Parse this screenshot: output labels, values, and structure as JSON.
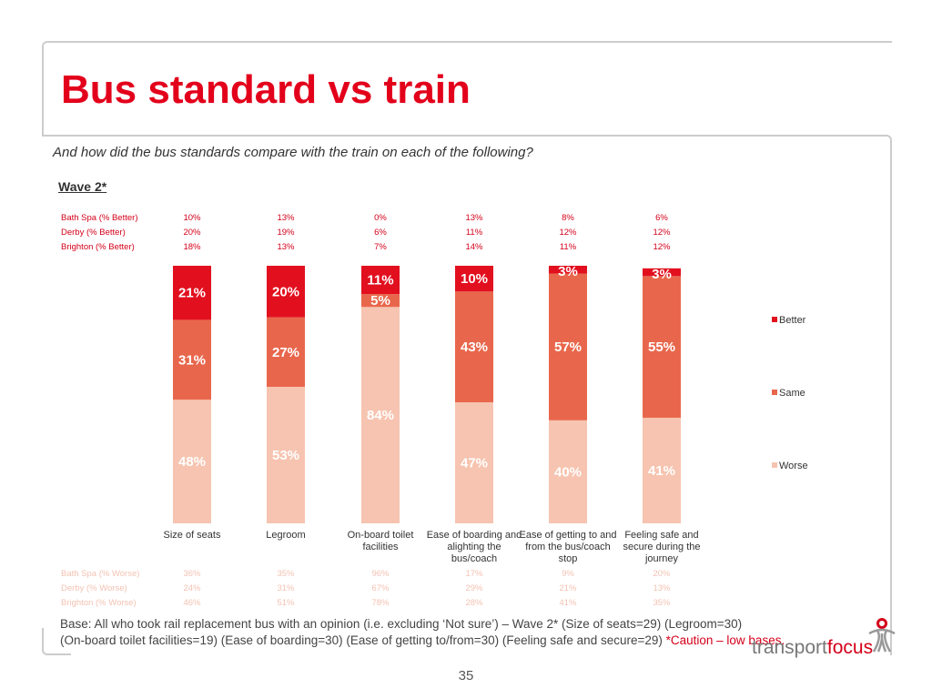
{
  "title": "Bus standard vs train",
  "question": "And how did the bus standards compare with the train on each of the following?",
  "wave": "Wave 2*",
  "better_table": [
    {
      "label": "Bath Spa (% Better)",
      "values": [
        "10%",
        "13%",
        "0%",
        "13%",
        "8%",
        "6%"
      ]
    },
    {
      "label": "Derby (% Better)",
      "values": [
        "20%",
        "19%",
        "6%",
        "11%",
        "12%",
        "12%"
      ]
    },
    {
      "label": "Brighton (% Better)",
      "values": [
        "18%",
        "13%",
        "7%",
        "14%",
        "11%",
        "12%"
      ]
    }
  ],
  "worse_table": [
    {
      "label": "Bath Spa (% Worse)",
      "values": [
        "36%",
        "35%",
        "96%",
        "17%",
        "9%",
        "20%"
      ]
    },
    {
      "label": "Derby (% Worse)",
      "values": [
        "24%",
        "31%",
        "67%",
        "29%",
        "21%",
        "13%"
      ]
    },
    {
      "label": "Brighton (% Worse)",
      "values": [
        "46%",
        "51%",
        "78%",
        "28%",
        "41%",
        "35%"
      ]
    }
  ],
  "chart_data": {
    "type": "bar",
    "stacked": true,
    "categories": [
      "Size of seats",
      "Legroom",
      "On-board toilet facilities",
      "Ease of boarding and alighting the bus/coach",
      "Ease of getting to and from the bus/coach stop",
      "Feeling safe and secure during the journey"
    ],
    "series": [
      {
        "name": "Worse",
        "values": [
          48,
          53,
          84,
          47,
          40,
          41
        ],
        "color": "#f6c4b0"
      },
      {
        "name": "Same",
        "values": [
          31,
          27,
          5,
          43,
          57,
          55
        ],
        "color": "#e8674c"
      },
      {
        "name": "Better",
        "values": [
          21,
          20,
          11,
          10,
          3,
          3
        ],
        "color": "#e2101f"
      }
    ],
    "ylim": [
      0,
      100
    ],
    "legend": "right",
    "grid": false
  },
  "base": "Base: All who took rail replacement bus with an opinion (i.e. excluding ‘Not sure’) – Wave 2* (Size of seats=29) (Legroom=30)",
  "base2": "(On-board toilet facilities=19) (Ease of boarding=30) (Ease of getting to/from=30) (Feeling safe and secure=29) ",
  "caution": "*Caution – low bases.",
  "logo": {
    "part1": "transport",
    "part2": "focus"
  },
  "page_number": "35"
}
